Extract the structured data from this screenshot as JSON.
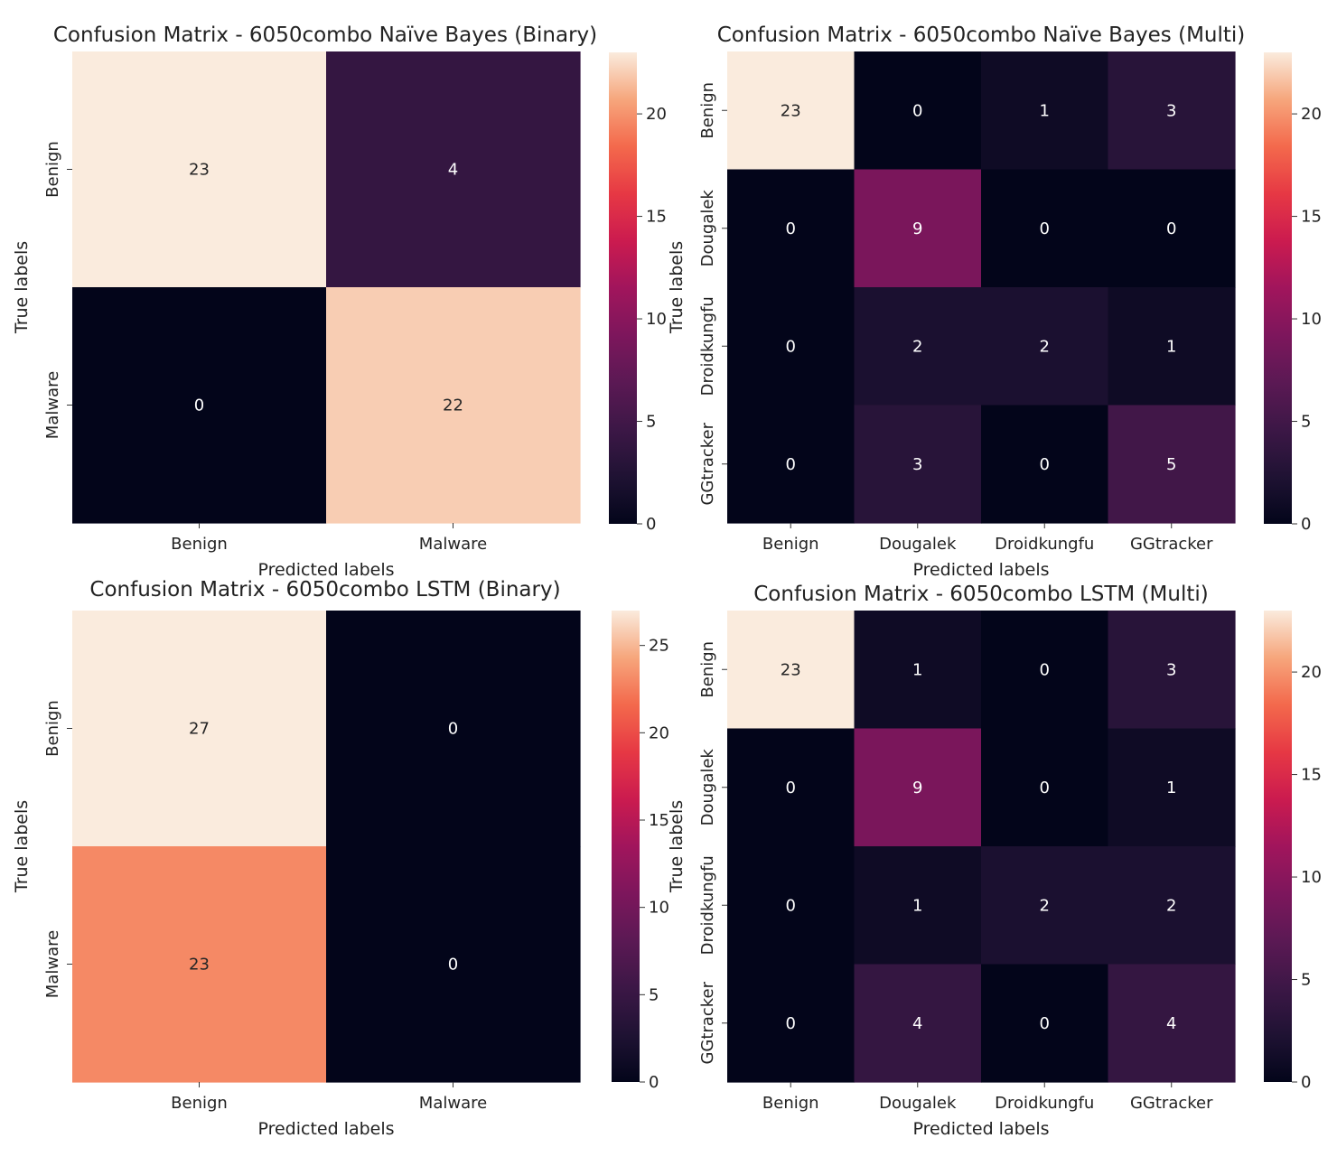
{
  "chart_data": [
    {
      "type": "heatmap",
      "title": "Confusion Matrix - 6050combo Naïve Bayes (Binary)",
      "xlabel": "Predicted labels",
      "ylabel": "True labels",
      "x_categories": [
        "Benign",
        "Malware"
      ],
      "y_categories": [
        "Benign",
        "Malware"
      ],
      "values": [
        [
          23,
          4
        ],
        [
          0,
          22
        ]
      ],
      "vmin": 0,
      "vmax": 23,
      "colorbar_ticks": [
        0,
        5,
        10,
        15,
        20
      ],
      "colormap": "rocket"
    },
    {
      "type": "heatmap",
      "title": "Confusion Matrix - 6050combo Naïve Bayes (Multi)",
      "xlabel": "Predicted labels",
      "ylabel": "True labels",
      "x_categories": [
        "Benign",
        "Dougalek",
        "Droidkungfu",
        "GGtracker"
      ],
      "y_categories": [
        "Benign",
        "Dougalek",
        "Droidkungfu",
        "GGtracker"
      ],
      "values": [
        [
          23,
          0,
          1,
          3
        ],
        [
          0,
          9,
          0,
          0
        ],
        [
          0,
          2,
          2,
          1
        ],
        [
          0,
          3,
          0,
          5
        ]
      ],
      "vmin": 0,
      "vmax": 23,
      "colorbar_ticks": [
        0,
        5,
        10,
        15,
        20
      ],
      "colormap": "rocket"
    },
    {
      "type": "heatmap",
      "title": "Confusion Matrix - 6050combo LSTM (Binary)",
      "xlabel": "Predicted labels",
      "ylabel": "True labels",
      "x_categories": [
        "Benign",
        "Malware"
      ],
      "y_categories": [
        "Benign",
        "Malware"
      ],
      "values": [
        [
          27,
          0
        ],
        [
          23,
          0
        ]
      ],
      "vmin": 0,
      "vmax": 27,
      "colorbar_ticks": [
        0,
        5,
        10,
        15,
        20,
        25
      ],
      "colormap": "rocket"
    },
    {
      "type": "heatmap",
      "title": "Confusion Matrix - 6050combo LSTM (Multi)",
      "xlabel": "Predicted labels",
      "ylabel": "True labels",
      "x_categories": [
        "Benign",
        "Dougalek",
        "Droidkungfu",
        "GGtracker"
      ],
      "y_categories": [
        "Benign",
        "Dougalek",
        "Droidkungfu",
        "GGtracker"
      ],
      "values": [
        [
          23,
          1,
          0,
          3
        ],
        [
          0,
          9,
          0,
          1
        ],
        [
          0,
          1,
          2,
          2
        ],
        [
          0,
          4,
          0,
          4
        ]
      ],
      "vmin": 0,
      "vmax": 23,
      "colorbar_ticks": [
        0,
        5,
        10,
        15,
        20
      ],
      "colormap": "rocket"
    }
  ]
}
